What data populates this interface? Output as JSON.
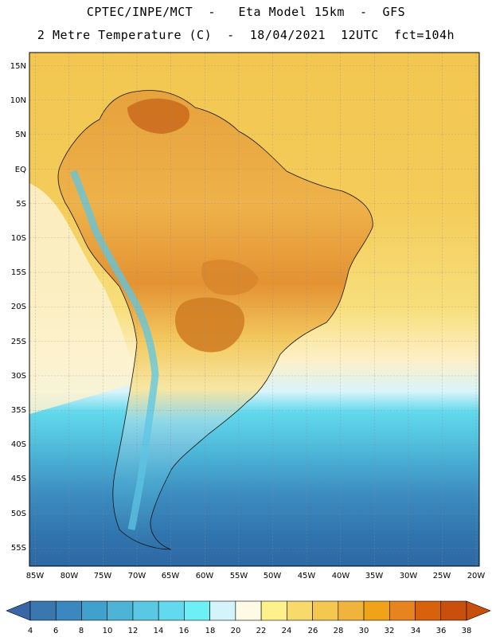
{
  "title": {
    "line1": "CPTEC/INPE/MCT  -   Eta Model 15km  -  GFS",
    "line2": "2 Metre Temperature (C)  -  18/04/2021  12UTC  fct=104h"
  },
  "map": {
    "lat_labels": [
      "15N",
      "10N",
      "5N",
      "EQ",
      "5S",
      "10S",
      "15S",
      "20S",
      "25S",
      "30S",
      "35S",
      "40S",
      "45S",
      "50S",
      "55S"
    ],
    "lon_labels": [
      "85W",
      "80W",
      "75W",
      "70W",
      "65W",
      "60W",
      "55W",
      "50W",
      "45W",
      "40W",
      "35W",
      "30W",
      "25W",
      "20W"
    ]
  },
  "colorbar": {
    "labels": [
      "4",
      "6",
      "8",
      "10",
      "12",
      "14",
      "16",
      "18",
      "20",
      "22",
      "24",
      "26",
      "28",
      "30",
      "32",
      "34",
      "36",
      "38"
    ],
    "under_color": "#3a66a8",
    "over_color": "#c8500c",
    "bin_colors": [
      "#3a77ae",
      "#3b88bf",
      "#40a1cc",
      "#4db4d6",
      "#5ac8e2",
      "#62d9ec",
      "#6cf0f6",
      "#d4f4fb",
      "#fefae6",
      "#fef08a",
      "#f7d96c",
      "#f4c84e",
      "#f0b43c",
      "#f0a318",
      "#e88420",
      "#d8620c",
      "#c8500c"
    ]
  },
  "colors": {
    "ocean_south": "#3070a8",
    "ocean_mid": "#4bb0d4",
    "ocean_cyan": "#5fd8ec",
    "ocean_warm": "#f5d46a",
    "land_hot": "#dc8c2c",
    "land_warm": "#eeb048"
  }
}
